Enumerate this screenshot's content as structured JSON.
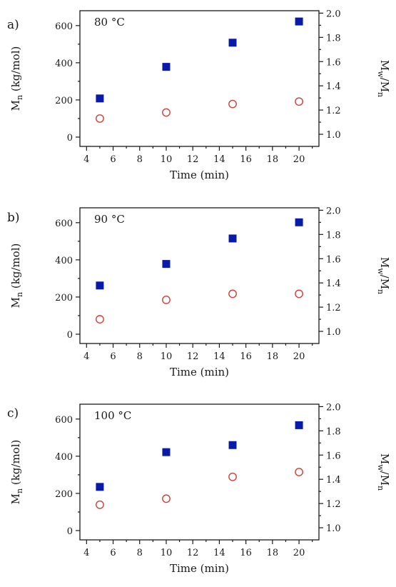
{
  "chart_data": [
    {
      "type": "scatter",
      "panel_label": "a)",
      "annotation": "80 °C",
      "xlabel": "Time (min)",
      "ylabel": "Mn (kg/mol)",
      "ylabel_main": "M",
      "ylabel_sub": "n",
      "ylabel_rest": " (kg/mol)",
      "y2label": "Mw/Mn",
      "y2label_a": "M",
      "y2label_a_sub": "w",
      "y2label_mid": "/M",
      "y2label_b_sub": "n",
      "xlim": [
        3.5,
        21.5
      ],
      "ylim": [
        -50,
        680
      ],
      "y2lim": [
        0.9,
        2.02
      ],
      "xticks": [
        "4",
        "6",
        "8",
        "10",
        "12",
        "14",
        "16",
        "18",
        "20"
      ],
      "yticks": [
        "0",
        "200",
        "400",
        "600"
      ],
      "y2ticks": [
        "1.0",
        "1.2",
        "1.4",
        "1.6",
        "1.8",
        "2.0"
      ],
      "series": [
        {
          "axis": "left",
          "marker": "filled-square",
          "color": "#0a1aa8",
          "x": [
            5,
            10,
            15,
            20
          ],
          "y": [
            208,
            378,
            508,
            622
          ]
        },
        {
          "axis": "right",
          "marker": "open-circle",
          "color": "#d0403c",
          "x": [
            5,
            10,
            15,
            20
          ],
          "y": [
            1.13,
            1.18,
            1.25,
            1.27
          ]
        }
      ]
    },
    {
      "type": "scatter",
      "panel_label": "b)",
      "annotation": "90 °C",
      "xlabel": "Time (min)",
      "ylabel": "Mn (kg/mol)",
      "ylabel_main": "M",
      "ylabel_sub": "n",
      "ylabel_rest": " (kg/mol)",
      "y2label": "Mw/Mn",
      "y2label_a": "M",
      "y2label_a_sub": "w",
      "y2label_mid": "/M",
      "y2label_b_sub": "n",
      "xlim": [
        3.5,
        21.5
      ],
      "ylim": [
        -50,
        680
      ],
      "y2lim": [
        0.9,
        2.02
      ],
      "xticks": [
        "4",
        "6",
        "8",
        "10",
        "12",
        "14",
        "16",
        "18",
        "20"
      ],
      "yticks": [
        "0",
        "200",
        "400",
        "600"
      ],
      "y2ticks": [
        "1.0",
        "1.2",
        "1.4",
        "1.6",
        "1.8",
        "2.0"
      ],
      "series": [
        {
          "axis": "left",
          "marker": "filled-square",
          "color": "#0a1aa8",
          "x": [
            5,
            10,
            15,
            20
          ],
          "y": [
            262,
            378,
            515,
            602
          ]
        },
        {
          "axis": "right",
          "marker": "open-circle",
          "color": "#d0403c",
          "x": [
            5,
            10,
            15,
            20
          ],
          "y": [
            1.1,
            1.26,
            1.31,
            1.31
          ]
        }
      ]
    },
    {
      "type": "scatter",
      "panel_label": "c)",
      "annotation": "100 °C",
      "xlabel": "Time (min)",
      "ylabel": "Mn (kg/mol)",
      "ylabel_main": "M",
      "ylabel_sub": "n",
      "ylabel_rest": " (kg/mol)",
      "y2label": "Mw/Mn",
      "y2label_a": "M",
      "y2label_a_sub": "w",
      "y2label_mid": "/M",
      "y2label_b_sub": "n",
      "xlim": [
        3.5,
        21.5
      ],
      "ylim": [
        -50,
        680
      ],
      "y2lim": [
        0.9,
        2.02
      ],
      "xticks": [
        "4",
        "6",
        "8",
        "10",
        "12",
        "14",
        "16",
        "18",
        "20"
      ],
      "yticks": [
        "0",
        "200",
        "400",
        "600"
      ],
      "y2ticks": [
        "1.0",
        "1.2",
        "1.4",
        "1.6",
        "1.8",
        "2.0"
      ],
      "series": [
        {
          "axis": "left",
          "marker": "filled-square",
          "color": "#0a1aa8",
          "x": [
            5,
            10,
            15,
            20
          ],
          "y": [
            235,
            422,
            460,
            567
          ]
        },
        {
          "axis": "right",
          "marker": "open-circle",
          "color": "#d0403c",
          "x": [
            5,
            10,
            15,
            20
          ],
          "y": [
            1.19,
            1.24,
            1.42,
            1.46
          ]
        }
      ]
    }
  ]
}
